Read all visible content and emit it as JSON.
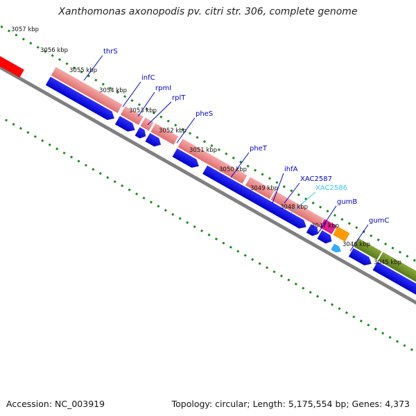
{
  "title": "Xanthomonas axonopodis pv. citri str. 306, complete genome",
  "footer": {
    "accession": "Accession: NC_003919",
    "summary": "Topology: circular; Length: 5,175,554 bp; Genes: 4,373"
  },
  "ticks": [
    {
      "label": "3057 kbp"
    },
    {
      "label": "3056 kbp"
    },
    {
      "label": "3055 kbp"
    },
    {
      "label": "3054 kbp"
    },
    {
      "label": "3053 kbp"
    },
    {
      "label": "3052 kbp"
    },
    {
      "label": "3051 kbp"
    },
    {
      "label": "3050 kbp"
    },
    {
      "label": "3049 kbp"
    },
    {
      "label": "3048 kbp"
    },
    {
      "label": "3047 kbp"
    },
    {
      "label": "3046 kbp"
    },
    {
      "label": "3045 kbp"
    }
  ],
  "gene_labels": [
    {
      "name": "thrS",
      "color": "#0000cc"
    },
    {
      "name": "infC",
      "color": "#0000cc"
    },
    {
      "name": "rpmI",
      "color": "#0000cc"
    },
    {
      "name": "rplT",
      "color": "#0000cc"
    },
    {
      "name": "pheS",
      "color": "#0000cc"
    },
    {
      "name": "pheT",
      "color": "#0000cc"
    },
    {
      "name": "ihfA",
      "color": "#0000cc"
    },
    {
      "name": "XAC2587",
      "color": "#0000cc"
    },
    {
      "name": "XAC2586",
      "color": "#33ccee"
    },
    {
      "name": "gumB",
      "color": "#0000cc"
    },
    {
      "name": "gumC",
      "color": "#0000cc"
    }
  ],
  "colors": {
    "backbone": "#808080",
    "gene_pink": "#f08c8c",
    "gene_magenta": "#e0208c",
    "gene_orange": "#ff9900",
    "gene_green": "#6b8e23",
    "cds_blue": "#0000ee",
    "red_feature": "#ff0000",
    "tick_green": "#1a8a1a"
  }
}
